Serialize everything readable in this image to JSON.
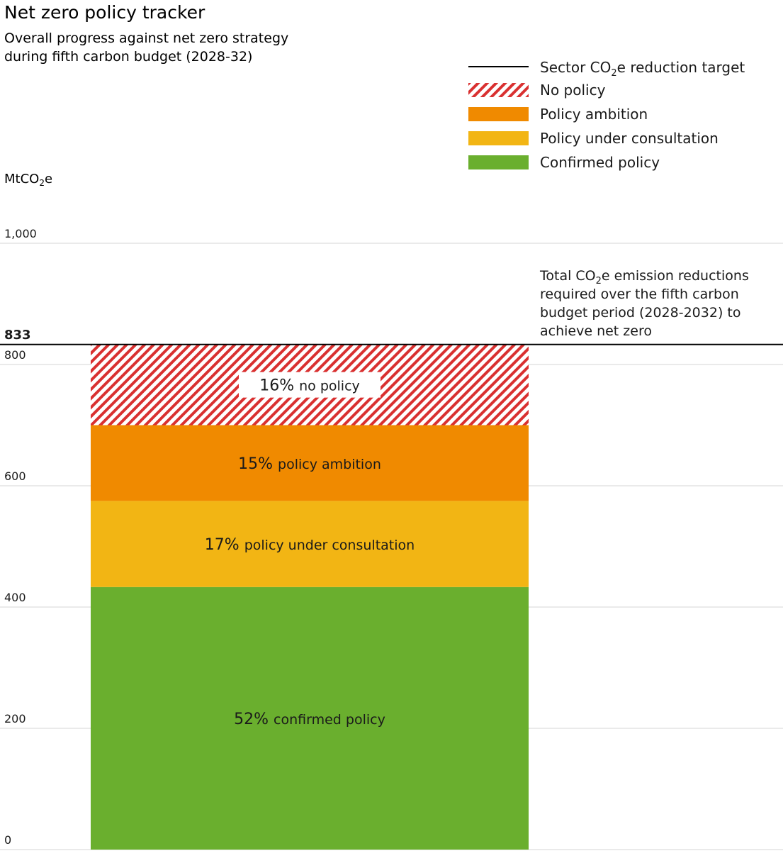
{
  "chart_data": {
    "type": "bar",
    "title": "Net zero policy tracker",
    "subtitle_lines": [
      "Overall progress against net zero strategy",
      "during fifth carbon budget (2028-32)"
    ],
    "ylabel": {
      "main": "MtCO",
      "sub": "2",
      "tail": "e"
    },
    "ylim": [
      0,
      1000
    ],
    "yticks": [
      {
        "value": 0,
        "label": "0"
      },
      {
        "value": 200,
        "label": "200"
      },
      {
        "value": 400,
        "label": "400"
      },
      {
        "value": 600,
        "label": "600"
      },
      {
        "value": 800,
        "label": "800"
      },
      {
        "value": 1000,
        "label": "1,000"
      }
    ],
    "grid": true,
    "target": {
      "value": 833,
      "label": "833"
    },
    "categories": [
      "Fifth carbon budget (2028-32)"
    ],
    "stack": [
      {
        "key": "confirmed",
        "name": "Confirmed policy",
        "value": 433,
        "pct": "52%",
        "text": "confirmed policy",
        "color": "#6aaf2e",
        "pattern": false
      },
      {
        "key": "consultation",
        "name": "Policy under consultation",
        "value": 142,
        "pct": "17%",
        "text": "policy under consultation",
        "color": "#f2b514",
        "pattern": false
      },
      {
        "key": "ambition",
        "name": "Policy ambition",
        "value": 125,
        "pct": "15%",
        "text": "policy ambition",
        "color": "#f08a00",
        "pattern": false
      },
      {
        "key": "nopolicy",
        "name": "No policy",
        "value": 133,
        "pct": "16%",
        "text": "no policy",
        "color": "#d93030",
        "pattern": true
      }
    ],
    "legend": {
      "placement": "top-right",
      "target_entry": {
        "main": "Sector CO",
        "sub": "2",
        "tail": "e reduction target"
      },
      "order": [
        "nopolicy",
        "ambition",
        "consultation",
        "confirmed"
      ]
    },
    "annotation": {
      "lines": [
        {
          "main": "Total CO",
          "sub": "2",
          "tail": "e emission reductions"
        },
        {
          "main": "required over the fifth carbon",
          "sub": "",
          "tail": ""
        },
        {
          "main": "budget period (2028-2032) to",
          "sub": "",
          "tail": ""
        },
        {
          "main": "achieve net zero",
          "sub": "",
          "tail": ""
        }
      ]
    }
  }
}
